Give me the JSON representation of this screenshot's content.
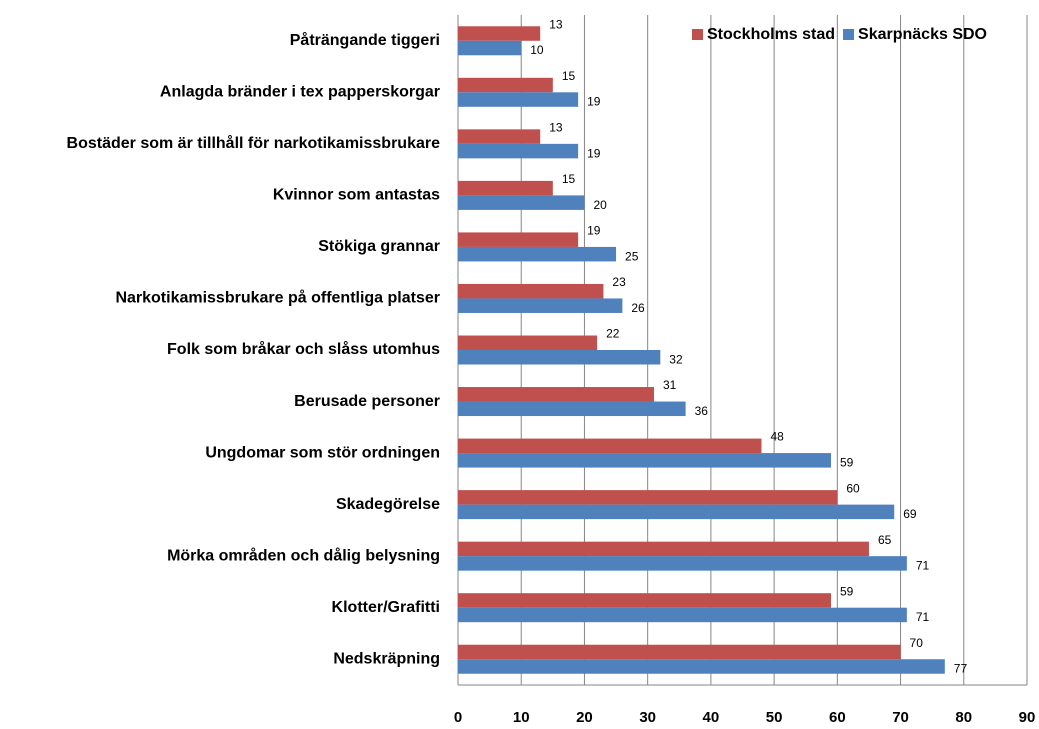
{
  "chart_data": {
    "type": "hbar",
    "categories": [
      "Påträngande tiggeri",
      "Anlagda bränder i tex papperskorgar",
      "Bostäder som är tillhåll för narkotikamissbrukare",
      "Kvinnor som antastas",
      "Stökiga grannar",
      "Narkotikamissbrukare på offentliga platser",
      "Folk som bråkar och slåss utomhus",
      "Berusade personer",
      "Ungdomar som stör ordningen",
      "Skadegörelse",
      "Mörka områden och dålig belysning",
      "Klotter/Grafitti",
      "Nedskräpning"
    ],
    "series": [
      {
        "name": "Stockholms stad",
        "color": "#c0504d",
        "values": [
          13,
          15,
          13,
          15,
          19,
          23,
          22,
          31,
          48,
          60,
          65,
          59,
          70
        ]
      },
      {
        "name": "Skarpnäcks SDO",
        "color": "#4f81bd",
        "values": [
          10,
          19,
          19,
          20,
          25,
          26,
          32,
          36,
          59,
          69,
          71,
          71,
          77
        ]
      }
    ],
    "xlim": [
      0,
      90
    ],
    "xticks": [
      0,
      10,
      20,
      30,
      40,
      50,
      60,
      70,
      80,
      90
    ],
    "grid": true,
    "legend": "top-right"
  }
}
